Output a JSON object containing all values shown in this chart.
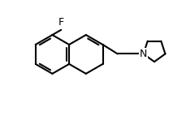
{
  "bg_color": "#ffffff",
  "bond_color": "#000000",
  "bond_width": 1.5,
  "font_size_F": 9,
  "font_size_N": 9,
  "figsize": [
    2.29,
    1.43
  ],
  "dpi": 100,
  "xlim": [
    0.0,
    10.0
  ],
  "ylim": [
    0.5,
    5.5
  ]
}
